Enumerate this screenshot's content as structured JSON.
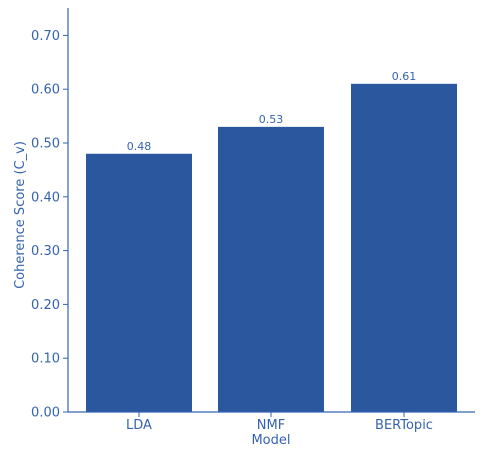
{
  "colors": {
    "bar": "#2b579f",
    "axis": "#3563b0",
    "text": "#3563b0"
  },
  "chart_data": {
    "type": "bar",
    "categories": [
      "LDA",
      "NMF",
      "BERTopic"
    ],
    "values": [
      0.48,
      0.53,
      0.61
    ],
    "value_labels": [
      "0.48",
      "0.53",
      "0.61"
    ],
    "xlabel": "Model",
    "ylabel": "Coherence Score (C_v)",
    "ylim": [
      0,
      0.75
    ],
    "yticks": [
      0.0,
      0.1,
      0.2,
      0.3,
      0.4,
      0.5,
      0.6,
      0.7
    ],
    "ytick_labels": [
      "0.00",
      "0.10",
      "0.20",
      "0.30",
      "0.40",
      "0.50",
      "0.60",
      "0.70"
    ],
    "grid": false
  }
}
